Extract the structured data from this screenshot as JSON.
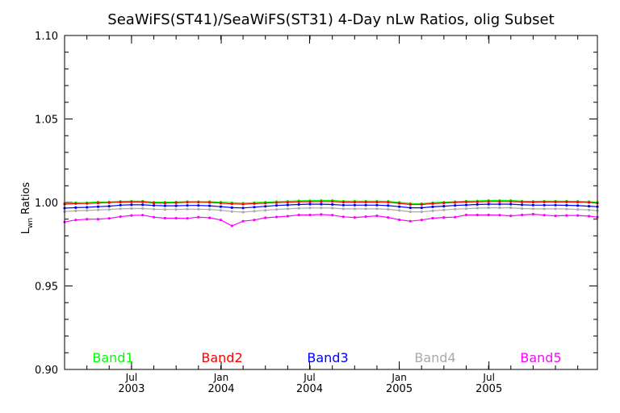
{
  "chart_data": {
    "type": "line",
    "title": "SeaWiFS(ST41)/SeaWiFS(ST31) 4-Day nLw Ratios, olig Subset",
    "ylabel_main": "L",
    "ylabel_sub": "wn",
    "ylabel_rest": " Ratios",
    "xlabel": "",
    "ylim": [
      0.9,
      1.1
    ],
    "xlim": [
      2002.0,
      2005.98
    ],
    "y_ticks": [
      {
        "value": 0.9,
        "label": "0.90"
      },
      {
        "value": 0.95,
        "label": "0.95"
      },
      {
        "value": 1.0,
        "label": "1.00"
      },
      {
        "value": 1.05,
        "label": "1.05"
      },
      {
        "value": 1.1,
        "label": "1.10"
      }
    ],
    "x_ticks": [
      {
        "value": 2002.5,
        "line1": "Jul",
        "line2": "2003"
      },
      {
        "value": 2003.17,
        "line1": "Jan",
        "line2": "2004"
      },
      {
        "value": 2003.83,
        "line1": "Jul",
        "line2": "2004"
      },
      {
        "value": 2004.5,
        "line1": "Jan",
        "line2": "2005"
      },
      {
        "value": 2005.17,
        "line1": "Jul",
        "line2": "2005"
      }
    ],
    "x": [
      2002.0,
      2002.083,
      2002.167,
      2002.25,
      2002.333,
      2002.417,
      2002.5,
      2002.583,
      2002.667,
      2002.75,
      2002.833,
      2002.917,
      2003.0,
      2003.083,
      2003.167,
      2003.25,
      2003.333,
      2003.417,
      2003.5,
      2003.583,
      2003.667,
      2003.75,
      2003.833,
      2003.917,
      2004.0,
      2004.083,
      2004.167,
      2004.25,
      2004.333,
      2004.417,
      2004.5,
      2004.583,
      2004.667,
      2004.75,
      2004.833,
      2004.917,
      2005.0,
      2005.083,
      2005.167,
      2005.25,
      2005.333,
      2005.417,
      2005.5,
      2005.583,
      2005.667,
      2005.75,
      2005.833,
      2005.917,
      2005.98
    ],
    "series": [
      {
        "name": "Band1",
        "color": "#00ff00",
        "values": [
          0.9996,
          0.9998,
          0.9999,
          1.0003,
          1.0004,
          1.0007,
          1.0008,
          1.0008,
          1.0002,
          1.0002,
          1.0003,
          1.0006,
          1.0006,
          1.0005,
          1.0002,
          0.9998,
          0.9996,
          0.9999,
          1.0002,
          1.0005,
          1.0007,
          1.001,
          1.0011,
          1.0012,
          1.0012,
          1.0008,
          1.0008,
          1.0008,
          1.0008,
          1.0007,
          1.0001,
          0.9994,
          0.9993,
          0.9998,
          1.0002,
          1.0005,
          1.0008,
          1.0009,
          1.0012,
          1.0012,
          1.0012,
          1.0008,
          1.0007,
          1.0008,
          1.0008,
          1.0008,
          1.0007,
          1.0005,
          1.0001
        ]
      },
      {
        "name": "Band2",
        "color": "#ff0000",
        "values": [
          0.999,
          0.9993,
          0.9994,
          0.9997,
          0.9999,
          1.0002,
          1.0003,
          1.0003,
          0.9997,
          0.9997,
          0.9998,
          1.0001,
          1.0001,
          1.0,
          0.9996,
          0.9992,
          0.999,
          0.9993,
          0.9996,
          0.9999,
          1.0001,
          1.0004,
          1.0005,
          1.0006,
          1.0006,
          1.0002,
          1.0002,
          1.0002,
          1.0002,
          1.0001,
          0.9995,
          0.9988,
          0.9988,
          0.9993,
          0.9997,
          1.0,
          1.0003,
          1.0004,
          1.0006,
          1.0006,
          1.0006,
          1.0003,
          1.0002,
          1.0003,
          1.0003,
          1.0003,
          1.0002,
          1.0,
          0.9996
        ]
      },
      {
        "name": "Band3",
        "color": "#0000ff",
        "values": [
          0.9966,
          0.9969,
          0.9971,
          0.9975,
          0.9978,
          0.9984,
          0.9986,
          0.9986,
          0.9982,
          0.998,
          0.998,
          0.9982,
          0.9982,
          0.998,
          0.9975,
          0.9969,
          0.9967,
          0.9972,
          0.9977,
          0.9982,
          0.9985,
          0.9988,
          0.999,
          0.999,
          0.9988,
          0.9984,
          0.9984,
          0.9984,
          0.9984,
          0.9981,
          0.9975,
          0.9968,
          0.9968,
          0.9974,
          0.9978,
          0.9982,
          0.9985,
          0.9988,
          0.999,
          0.999,
          0.999,
          0.9986,
          0.9984,
          0.9984,
          0.9984,
          0.9983,
          0.9981,
          0.9978,
          0.9975
        ]
      },
      {
        "name": "Band4",
        "color": "#aaaaaa",
        "values": [
          0.9946,
          0.995,
          0.9952,
          0.9955,
          0.9958,
          0.9962,
          0.9964,
          0.9964,
          0.996,
          0.9958,
          0.9958,
          0.996,
          0.996,
          0.9958,
          0.9953,
          0.9946,
          0.9942,
          0.9948,
          0.9953,
          0.9958,
          0.9962,
          0.9965,
          0.9967,
          0.9967,
          0.9966,
          0.9962,
          0.9962,
          0.9962,
          0.9962,
          0.9959,
          0.9952,
          0.9944,
          0.9944,
          0.995,
          0.9955,
          0.996,
          0.9963,
          0.9966,
          0.9968,
          0.9968,
          0.9968,
          0.9964,
          0.9962,
          0.9962,
          0.9962,
          0.9961,
          0.9958,
          0.9955,
          0.9951
        ]
      },
      {
        "name": "Band5",
        "color": "#ff00ff",
        "values": [
          0.9883,
          0.9895,
          0.99,
          0.99,
          0.9905,
          0.9915,
          0.9922,
          0.9924,
          0.9912,
          0.9906,
          0.9906,
          0.9905,
          0.9912,
          0.9908,
          0.9895,
          0.986,
          0.9888,
          0.9895,
          0.9908,
          0.9913,
          0.9918,
          0.9925,
          0.9925,
          0.9928,
          0.9924,
          0.9914,
          0.991,
          0.9915,
          0.992,
          0.991,
          0.9896,
          0.9888,
          0.9895,
          0.9906,
          0.991,
          0.9912,
          0.9925,
          0.9925,
          0.9925,
          0.9924,
          0.992,
          0.9925,
          0.993,
          0.9924,
          0.992,
          0.9922,
          0.9922,
          0.9918,
          0.9912
        ]
      }
    ],
    "legend": [
      "Band1",
      "Band2",
      "Band3",
      "Band4",
      "Band5"
    ],
    "legend_placement": "bottom"
  }
}
